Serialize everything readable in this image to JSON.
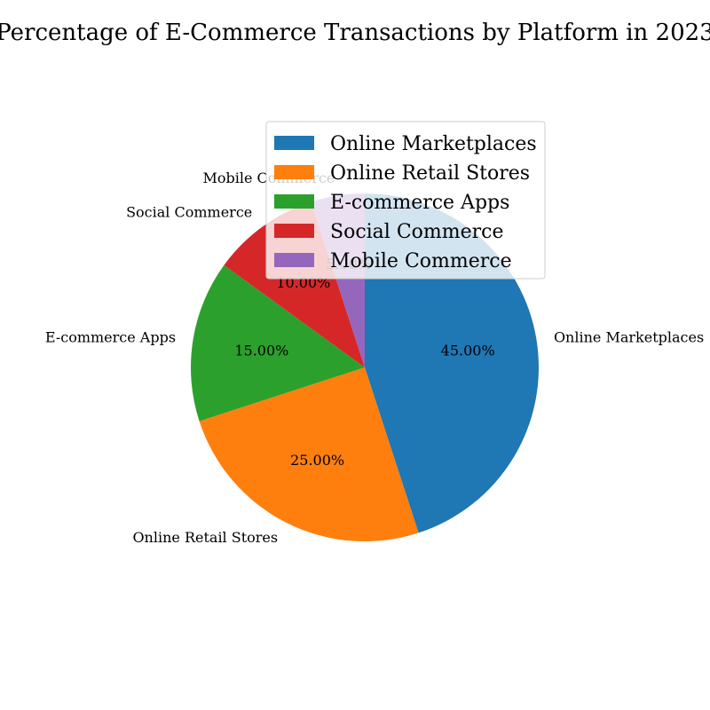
{
  "chart_data": {
    "type": "pie",
    "title": "Percentage of E-Commerce Transactions by Platform in 2023",
    "categories": [
      "Online Marketplaces",
      "Online Retail Stores",
      "E-commerce Apps",
      "Social Commerce",
      "Mobile Commerce"
    ],
    "values": [
      45,
      25,
      15,
      10,
      5
    ],
    "percent_labels": [
      "45.00%",
      "25.00%",
      "15.00%",
      "10.00%",
      "5.00%"
    ],
    "colors": [
      "#1f77b4",
      "#ff7f0e",
      "#2ca02c",
      "#d62728",
      "#9467bd"
    ],
    "start_angle": 90,
    "direction": "clockwise",
    "legend": {
      "placement": "upper-right",
      "entries": [
        "Online Marketplaces",
        "Online Retail Stores",
        "E-commerce Apps",
        "Social Commerce",
        "Mobile Commerce"
      ]
    }
  }
}
